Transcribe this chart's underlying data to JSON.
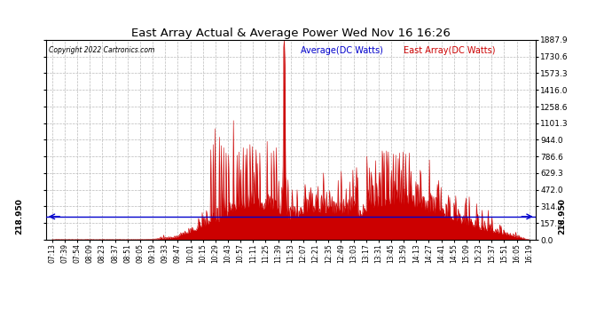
{
  "title": "East Array Actual & Average Power Wed Nov 16 16:26",
  "copyright": "Copyright 2022 Cartronics.com",
  "legend_avg": "Average(DC Watts)",
  "legend_east": "East Array(DC Watts)",
  "avg_value": 218.95,
  "yticks": [
    0.0,
    157.3,
    314.7,
    472.0,
    629.3,
    786.6,
    944.0,
    1101.3,
    1258.6,
    1416.0,
    1573.3,
    1730.6,
    1887.9
  ],
  "ymax": 1887.9,
  "ymin": 0.0,
  "avg_line_color": "#0000cc",
  "east_array_color": "#cc0000",
  "background_color": "#ffffff",
  "grid_color": "#bbbbbb",
  "title_color": "#000000",
  "avg_label_color": "#0000cc",
  "east_label_color": "#cc0000",
  "x_tick_labels": [
    "07:13",
    "07:39",
    "07:54",
    "08:09",
    "08:23",
    "08:37",
    "08:51",
    "09:05",
    "09:19",
    "09:33",
    "09:47",
    "10:01",
    "10:15",
    "10:29",
    "10:43",
    "10:57",
    "11:11",
    "11:25",
    "11:39",
    "11:53",
    "12:07",
    "12:21",
    "12:35",
    "12:49",
    "13:03",
    "13:17",
    "13:31",
    "13:45",
    "13:59",
    "14:13",
    "14:27",
    "14:41",
    "14:55",
    "15:09",
    "15:23",
    "15:37",
    "15:51",
    "16:05",
    "16:19"
  ]
}
